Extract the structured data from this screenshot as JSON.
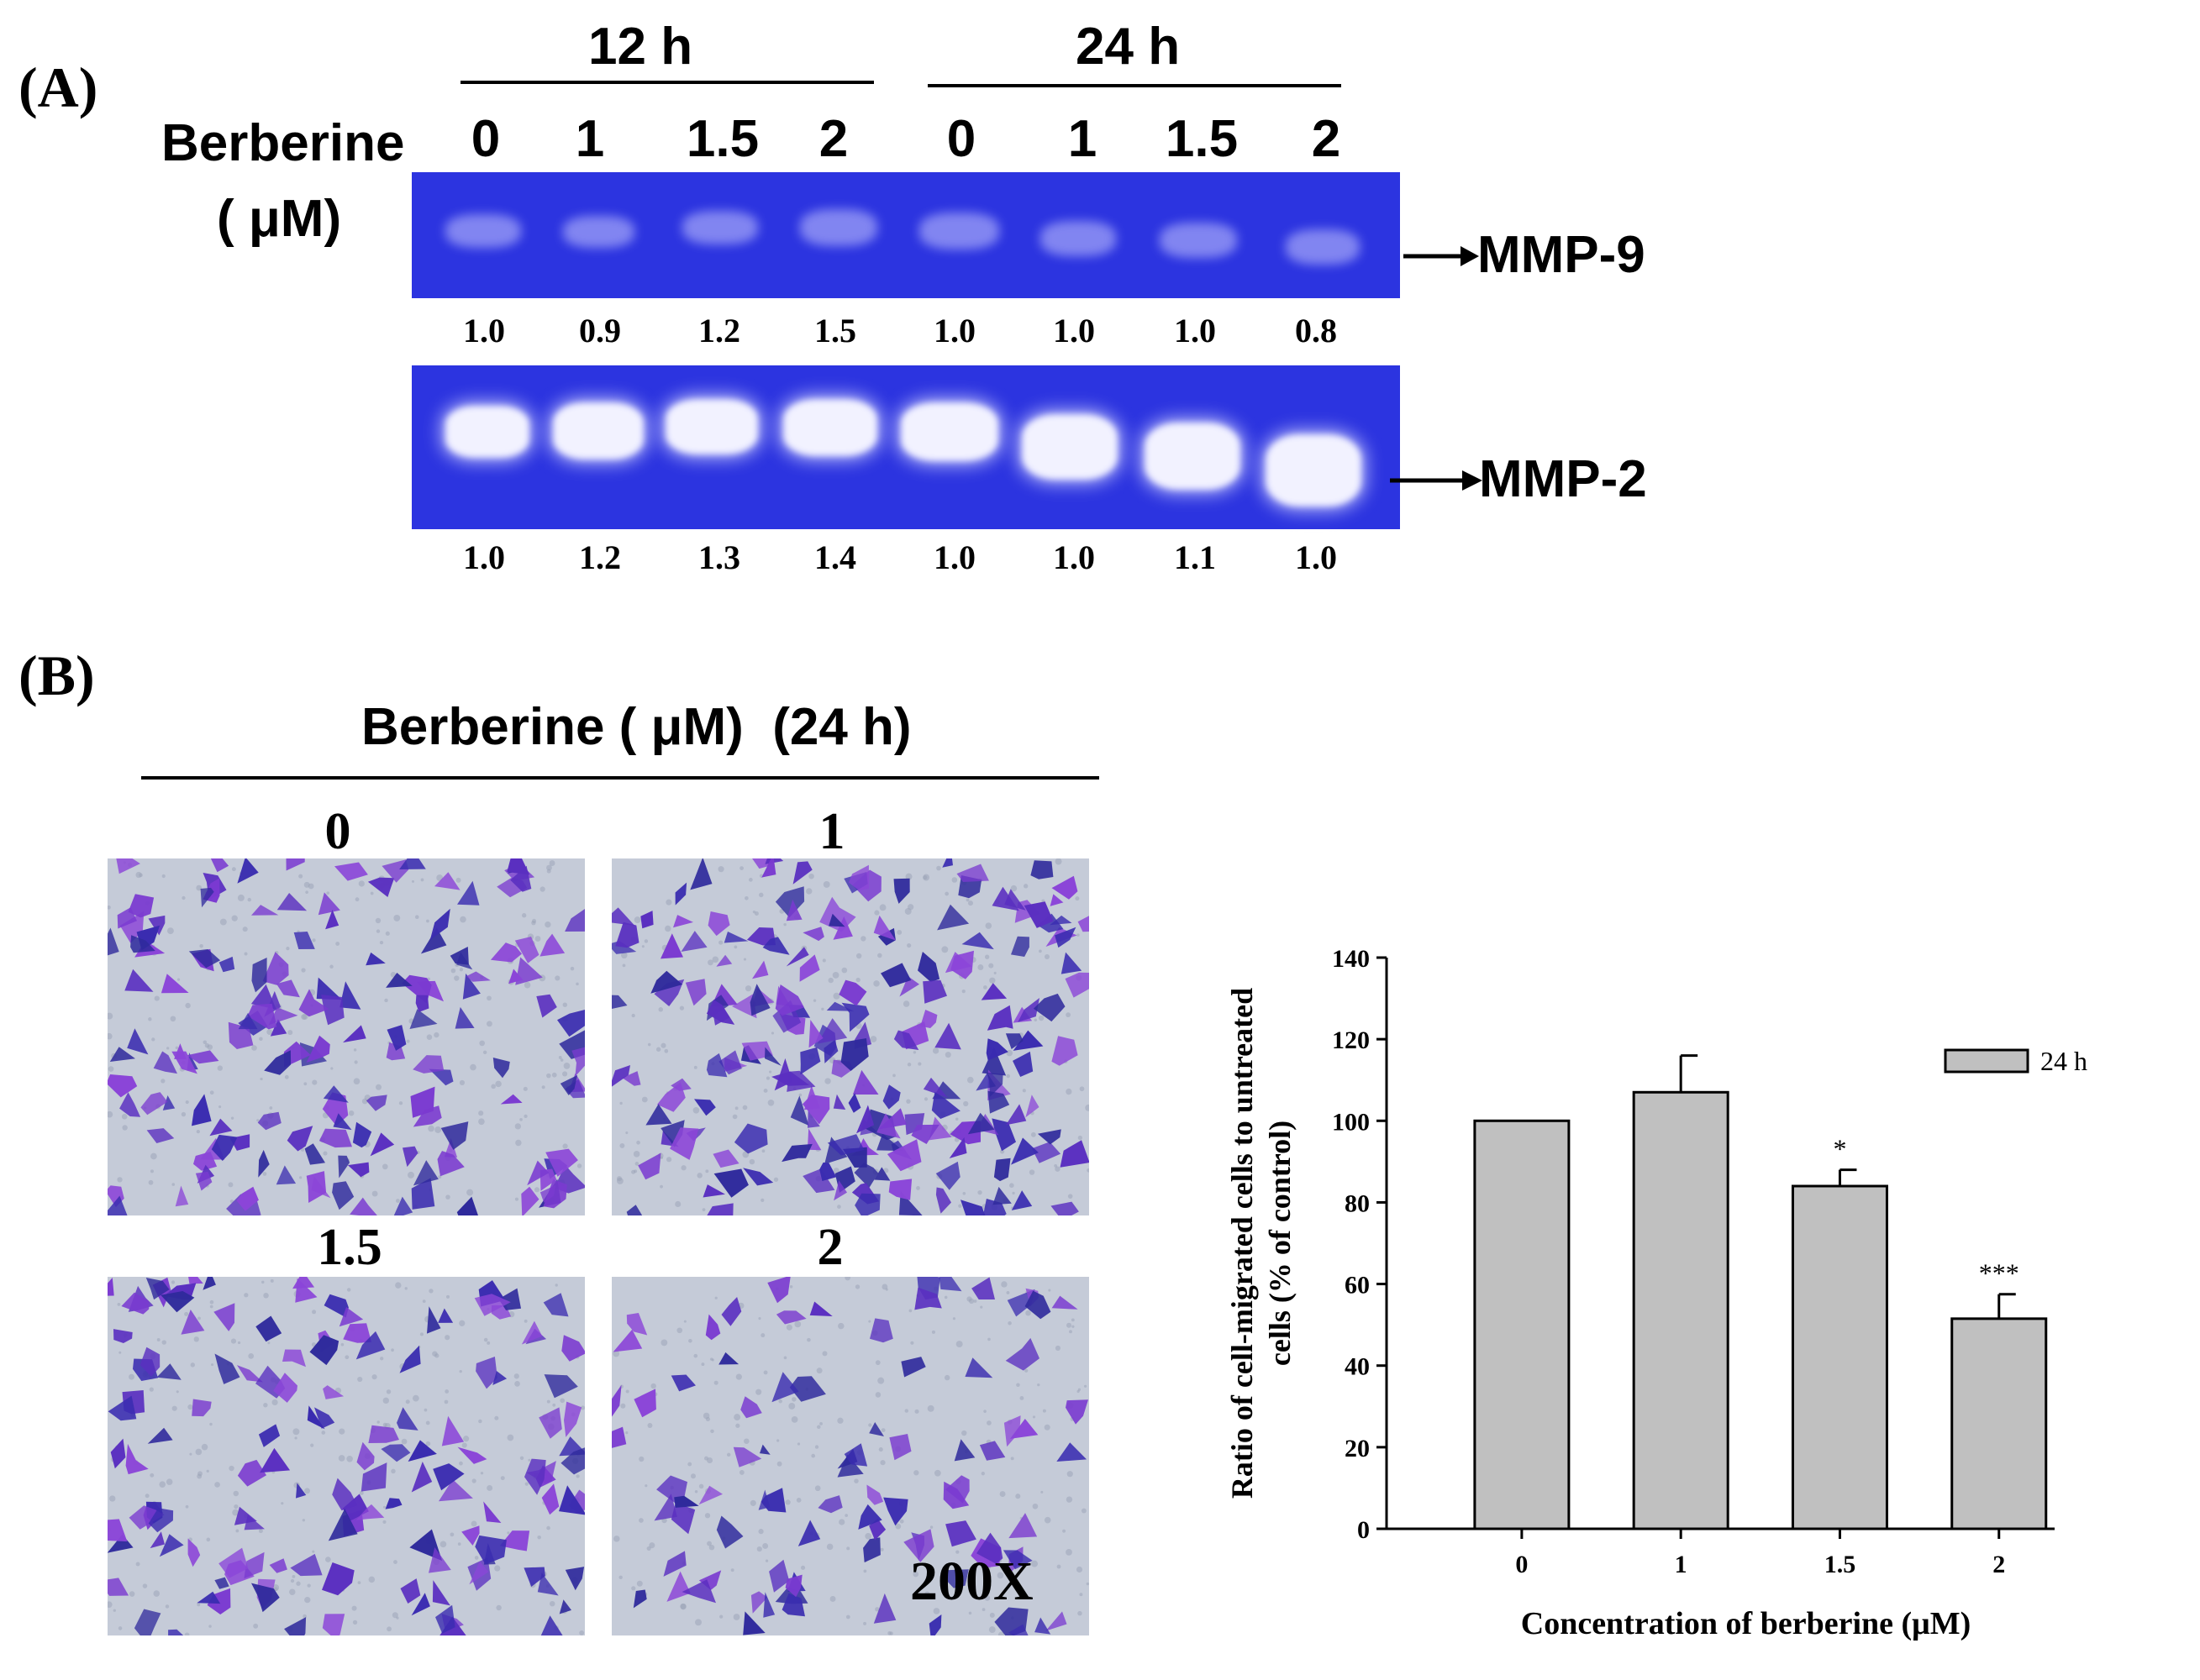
{
  "panel_a": {
    "label": "(A)",
    "time_groups": [
      "12 h",
      "24 h"
    ],
    "treatment_label_line1": "Berberine",
    "treatment_label_line2": "( μM)",
    "lanes": [
      "0",
      "1",
      "1.5",
      "2",
      "0",
      "1",
      "1.5",
      "2"
    ],
    "mmp9": {
      "name": "MMP-9",
      "ratios": [
        "1.0",
        "0.9",
        "1.2",
        "1.5",
        "1.0",
        "1.0",
        "1.0",
        "0.8"
      ]
    },
    "mmp2": {
      "name": "MMP-2",
      "ratios": [
        "1.0",
        "1.2",
        "1.3",
        "1.4",
        "1.0",
        "1.0",
        "1.1",
        "1.0"
      ]
    },
    "gel_color": "#2c34e0"
  },
  "panel_b": {
    "label": "(B)",
    "header": "Berberine ( μM)  (24 h)",
    "images": [
      {
        "label": "0"
      },
      {
        "label": "1"
      },
      {
        "label": "1.5"
      },
      {
        "label": "2"
      }
    ],
    "magnification": "200X"
  },
  "chart_data": {
    "type": "bar",
    "categories": [
      "0",
      "1",
      "1.5",
      "2"
    ],
    "series": [
      {
        "name": "24 h",
        "values": [
          100,
          107,
          84,
          51.5
        ],
        "errors": [
          0,
          9,
          4,
          6
        ]
      }
    ],
    "significance": [
      "",
      "",
      "*",
      "***"
    ],
    "ylabel_line1": "Ratio of cell-migrated cells to untreated",
    "ylabel_line2": "cells (% of control)",
    "xlabel": "Concentration of berberine (μM)",
    "ylim": [
      0,
      140
    ],
    "yticks": [
      "0",
      "20",
      "40",
      "60",
      "80",
      "100",
      "120",
      "140"
    ],
    "legend": "24 h",
    "bar_color": "#c0c0c0"
  }
}
